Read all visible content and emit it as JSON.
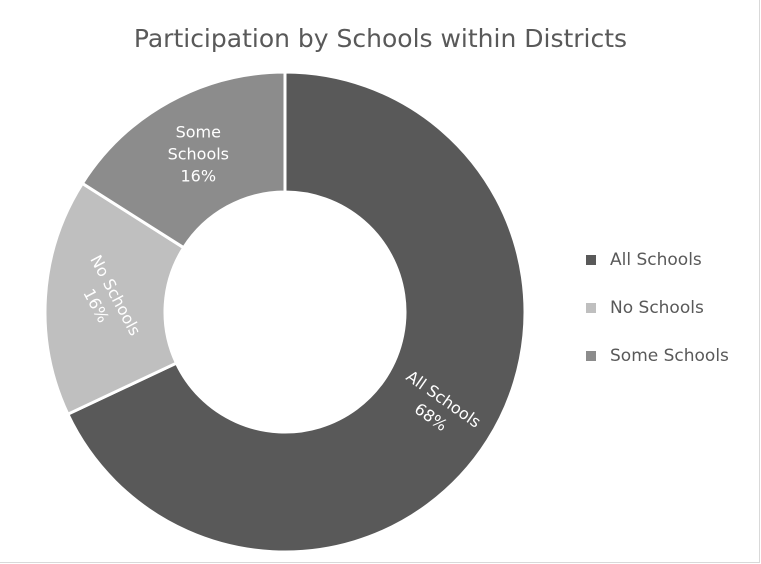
{
  "chart_data": {
    "type": "pie",
    "title": "Participation by Schools within Districts",
    "categories": [
      "All Schools",
      "No Schools",
      "Some Schools"
    ],
    "values": [
      68,
      16,
      16
    ],
    "value_labels": [
      "68%",
      "16%",
      "16%"
    ],
    "colors": [
      "#595959",
      "#bfbfbf",
      "#8c8c8c"
    ],
    "donut": true,
    "start_angle_deg": 0,
    "legend_position": "right"
  }
}
